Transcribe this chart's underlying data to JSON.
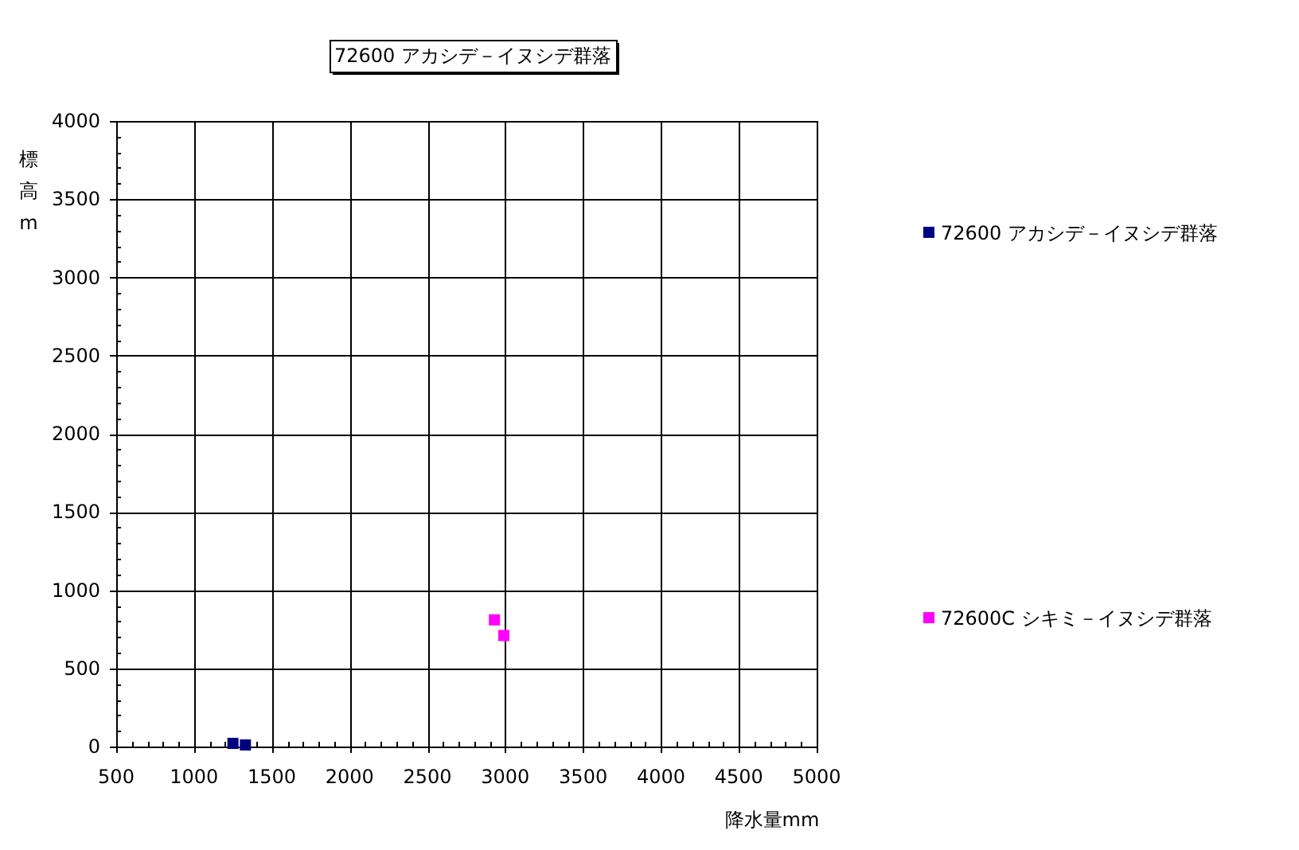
{
  "chart_data": {
    "type": "scatter",
    "title": "72600 アカシデ－イヌシデ群落",
    "xlabel": "降水量mm",
    "ylabel": "標高m",
    "xlim": [
      500,
      5000
    ],
    "ylim": [
      0,
      4000
    ],
    "xticks": [
      500,
      1000,
      1500,
      2000,
      2500,
      3000,
      3500,
      4000,
      4500,
      5000
    ],
    "yticks": [
      0,
      500,
      1000,
      1500,
      2000,
      2500,
      3000,
      3500,
      4000
    ],
    "grid": true,
    "legend": "right",
    "marker": "square",
    "series": [
      {
        "name": "72600 アカシデ－イヌシデ群落",
        "color": "#000080",
        "x": [
          1250,
          1330
        ],
        "values": [
          20,
          10
        ]
      },
      {
        "name": "72600C シキミ－イヌシデ群落",
        "color": "#ff00ff",
        "x": [
          2930,
          2990
        ],
        "values": [
          810,
          710
        ]
      }
    ]
  }
}
